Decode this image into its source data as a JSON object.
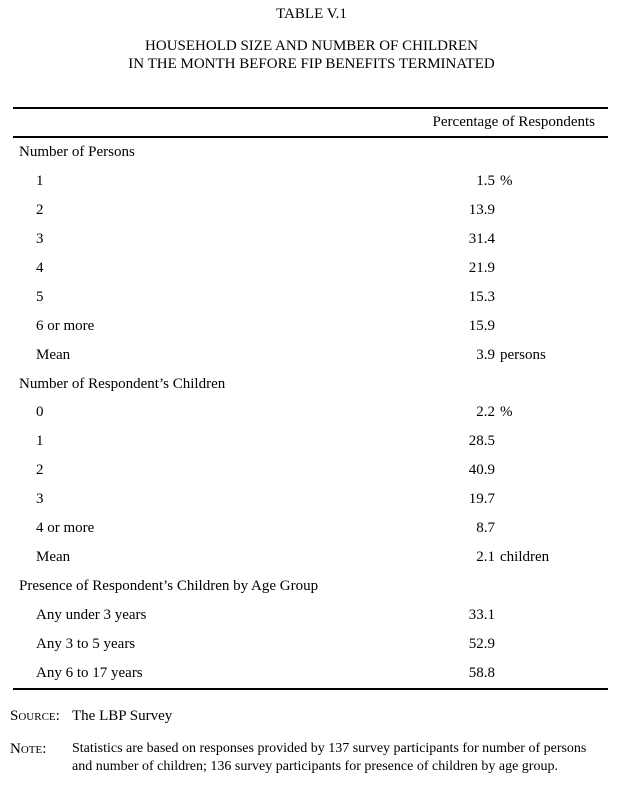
{
  "page": {
    "table_number": "TABLE V.1",
    "title_line1": "HOUSEHOLD SIZE AND NUMBER OF CHILDREN",
    "title_line2": "IN THE MONTH BEFORE FIP BENEFITS TERMINATED"
  },
  "table": {
    "column_header": "Percentage of Respondents",
    "sections": [
      {
        "header": "Number of Persons",
        "rows": [
          {
            "label": "1",
            "value": "1.5",
            "suffix": "%"
          },
          {
            "label": "2",
            "value": "13.9",
            "suffix": ""
          },
          {
            "label": "3",
            "value": "31.4",
            "suffix": ""
          },
          {
            "label": "4",
            "value": "21.9",
            "suffix": ""
          },
          {
            "label": "5",
            "value": "15.3",
            "suffix": ""
          },
          {
            "label": "6 or more",
            "value": "15.9",
            "suffix": ""
          },
          {
            "label": "Mean",
            "value": "3.9",
            "suffix": "persons"
          }
        ]
      },
      {
        "header": "Number of Respondent’s Children",
        "rows": [
          {
            "label": "0",
            "value": "2.2",
            "suffix": "%"
          },
          {
            "label": "1",
            "value": "28.5",
            "suffix": ""
          },
          {
            "label": "2",
            "value": "40.9",
            "suffix": ""
          },
          {
            "label": "3",
            "value": "19.7",
            "suffix": ""
          },
          {
            "label": "4 or more",
            "value": "8.7",
            "suffix": ""
          },
          {
            "label": "Mean",
            "value": "2.1",
            "suffix": "children"
          }
        ]
      },
      {
        "header": "Presence of Respondent’s Children by Age Group",
        "rows": [
          {
            "label": "Any under 3 years",
            "value": "33.1",
            "suffix": ""
          },
          {
            "label": "Any 3 to 5 years",
            "value": "52.9",
            "suffix": ""
          },
          {
            "label": "Any 6 to 17 years",
            "value": "58.8",
            "suffix": ""
          }
        ]
      }
    ]
  },
  "source": {
    "label": "Source:",
    "text": "The LBP Survey"
  },
  "note": {
    "label": "Note:",
    "lines": [
      "Statistics are based on responses provided by 137 survey participants for number of persons",
      "and number of children; 136 survey participants for presence of children by age group."
    ]
  }
}
